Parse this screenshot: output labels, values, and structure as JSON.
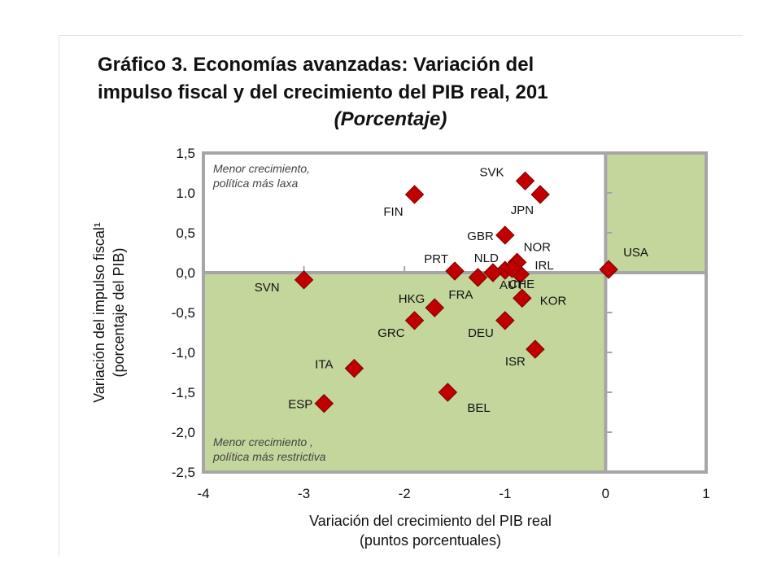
{
  "title": {
    "line1": "Gráfico 3. Economías avanzadas: Variación del",
    "line2": "impulso fiscal y del crecimiento del PIB real, 201",
    "subtitle": "(Porcentaje)"
  },
  "chart_data": {
    "type": "scatter",
    "xlabel": "Variación del crecimiento del PIB real",
    "xlabel_units": "(puntos porcentuales)",
    "ylabel": "Variación del impulso fiscal¹",
    "ylabel_units": "(porcentaje del PIB)",
    "xlim": [
      -4,
      1
    ],
    "ylim": [
      -2.5,
      1.5
    ],
    "x_ticks": [
      "-4",
      "-3",
      "-2",
      "-1",
      "0",
      "1"
    ],
    "y_ticks": [
      "1,5",
      "1.0",
      "0,5",
      "0,0",
      "-0,5",
      "-1,0",
      "-1,5",
      "-2,0",
      "-2,5"
    ],
    "quadrant_notes": {
      "upper_left": [
        "Menor crecimiento,",
        "política más laxa"
      ],
      "lower_left": [
        "Menor crecimiento ,",
        "política más restrictiva"
      ]
    },
    "colors": {
      "marker": "#c00000",
      "shade": "#c3d69b",
      "axis": "#a6a6a6"
    },
    "points": [
      {
        "label": "SVK",
        "x": -0.8,
        "y": 1.15
      },
      {
        "label": "JPN",
        "x": -0.65,
        "y": 0.98
      },
      {
        "label": "FIN",
        "x": -1.9,
        "y": 0.98
      },
      {
        "label": "GBR",
        "x": -1.0,
        "y": 0.47
      },
      {
        "label": "NOR",
        "x": -0.88,
        "y": 0.13
      },
      {
        "label": "IRL",
        "x": -0.85,
        "y": -0.02
      },
      {
        "label": "USA",
        "x": 0.03,
        "y": 0.04
      },
      {
        "label": "PRT",
        "x": -1.5,
        "y": 0.02
      },
      {
        "label": "NLD",
        "x": -1.0,
        "y": 0.03
      },
      {
        "label": "FRA",
        "x": -1.27,
        "y": -0.06
      },
      {
        "label": "AUT",
        "x": -1.12,
        "y": 0.0
      },
      {
        "label": "CHE",
        "x": -0.93,
        "y": 0.05
      },
      {
        "label": "SVN",
        "x": -3.0,
        "y": -0.09
      },
      {
        "label": "KOR",
        "x": -0.83,
        "y": -0.32
      },
      {
        "label": "HKG",
        "x": -1.7,
        "y": -0.44
      },
      {
        "label": "GRC",
        "x": -1.9,
        "y": -0.6
      },
      {
        "label": "DEU",
        "x": -1.0,
        "y": -0.6
      },
      {
        "label": "ISR",
        "x": -0.7,
        "y": -0.96
      },
      {
        "label": "ITA",
        "x": -2.5,
        "y": -1.2
      },
      {
        "label": "BEL",
        "x": -1.57,
        "y": -1.5
      },
      {
        "label": "ESP",
        "x": -2.8,
        "y": -1.64
      }
    ]
  }
}
